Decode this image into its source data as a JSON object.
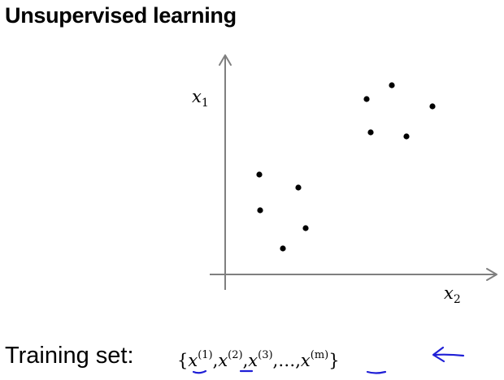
{
  "title": "Unsupervised learning",
  "plot": {
    "y_axis_label": "x",
    "y_axis_sub": "1",
    "x_axis_label": "x",
    "x_axis_sub": "2",
    "point_count": 10,
    "point_color": "#000000",
    "axis_color": "#7f7f7f"
  },
  "training": {
    "label": "Training set:",
    "open_brace": "{",
    "close_brace": "}",
    "items": [
      {
        "var": "x",
        "sup": "(1)",
        "sep": ","
      },
      {
        "var": "x",
        "sup": "(2)",
        "sep": ","
      },
      {
        "var": "x",
        "sup": "(3)",
        "sep": ","
      },
      {
        "var": "…",
        "sup": "",
        "sep": ","
      },
      {
        "var": "x",
        "sup": "(m)",
        "sep": ""
      }
    ],
    "annotation_color": "#1f1fd6"
  }
}
